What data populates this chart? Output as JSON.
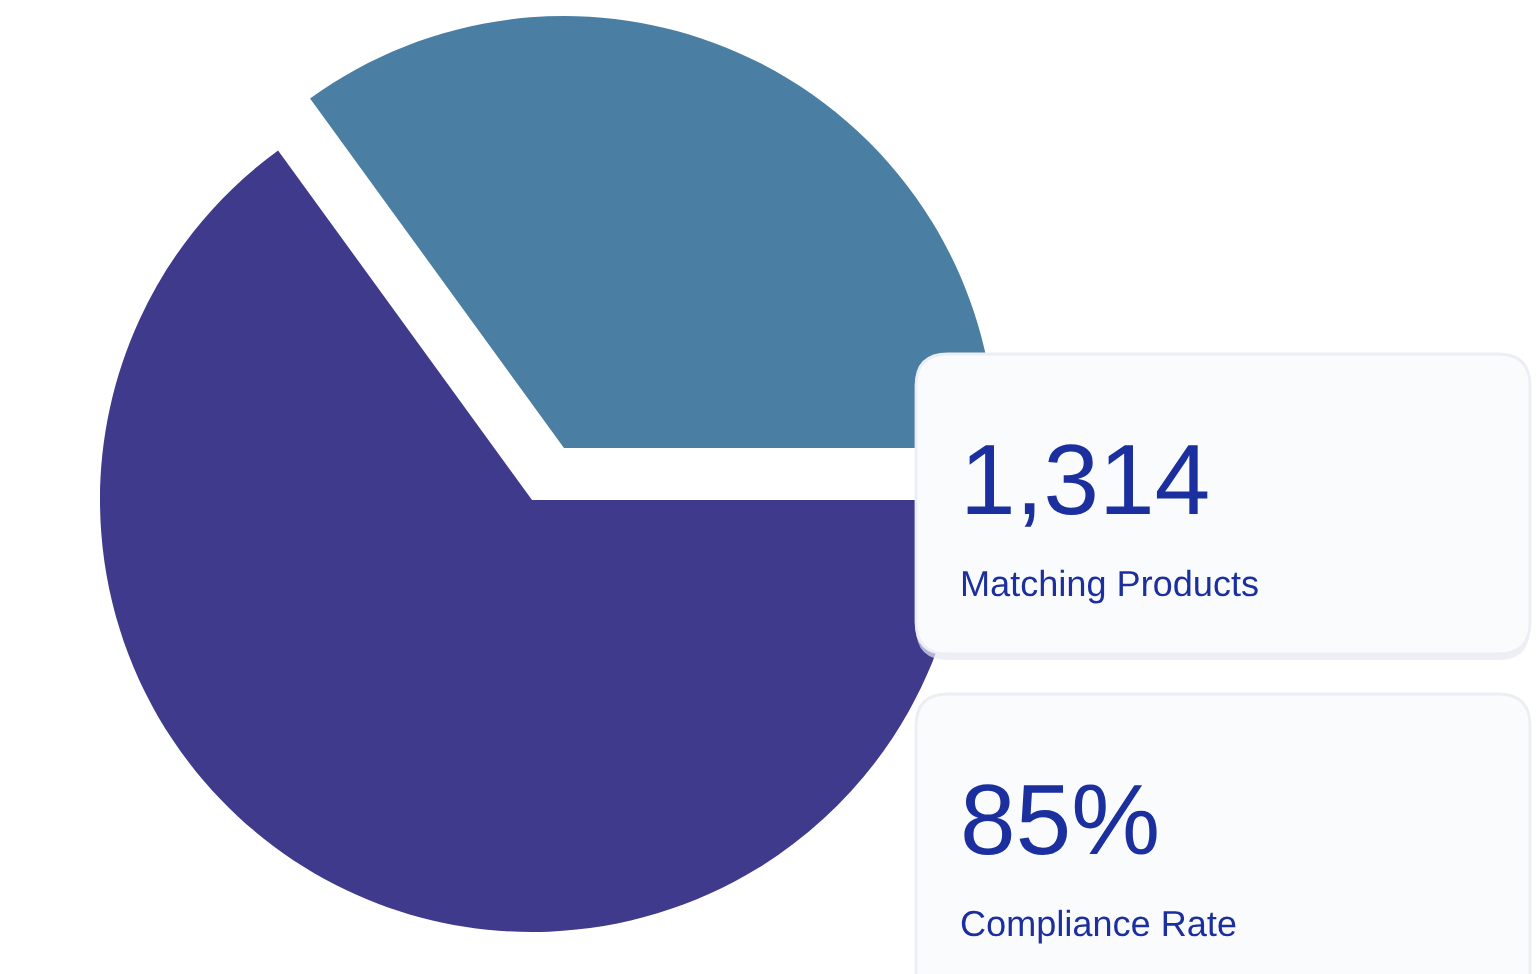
{
  "chart_data": [
    {
      "type": "pie",
      "categories": [
        null,
        null
      ],
      "values": [
        35,
        65
      ],
      "colors": [
        "#4a7fa3",
        "#3f3a8c"
      ]
    },
    {
      "type": "other",
      "annotations": [
        "1,314",
        "Matching Products"
      ]
    },
    {
      "type": "other",
      "annotations": [
        "85%",
        "Compliance Rate"
      ]
    }
  ]
}
